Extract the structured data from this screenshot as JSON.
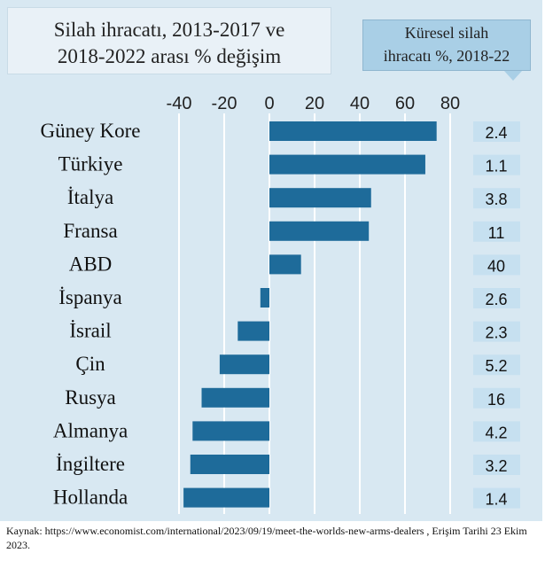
{
  "chart_data": {
    "type": "bar",
    "orientation": "horizontal",
    "title": "Silah ihracatı, 2013-2017 ve 2018-2022 arası % değişim",
    "title_lines": [
      "Silah ihracatı, 2013-2017 ve",
      "2018-2022 arası % değişim"
    ],
    "share_column_title_lines": [
      "Küresel silah",
      "ihracatı %, 2018-22"
    ],
    "categories": [
      "Güney Kore",
      "Türkiye",
      "İtalya",
      "Fransa",
      "ABD",
      "İspanya",
      "İsrail",
      "Çin",
      "Rusya",
      "Almanya",
      "İngiltere",
      "Hollanda"
    ],
    "values": [
      74,
      69,
      45,
      44,
      14,
      -4,
      -14,
      -22,
      -30,
      -34,
      -35,
      -38
    ],
    "share_labels": [
      "2.4",
      "1.1",
      "3.8",
      "11",
      "40",
      "2.6",
      "2.3",
      "5.2",
      "16",
      "4.2",
      "3.2",
      "1.4"
    ],
    "xticks": [
      "-40",
      "-20",
      "0",
      "20",
      "40",
      "60",
      "80"
    ],
    "xlim": [
      -40,
      80
    ],
    "grid": true,
    "xlabel": "",
    "ylabel": ""
  },
  "colors": {
    "background": "#d8e8f2",
    "bar": "#1e6b9a",
    "grid": "#ffffff",
    "share_box": "#c6e0f0",
    "share_header": "#a9cfe6"
  },
  "source_note": "Kaynak: https://www.economist.com/international/2023/09/19/meet-the-worlds-new-arms-dealers , Erişim Tarihi 23 Ekim 2023."
}
